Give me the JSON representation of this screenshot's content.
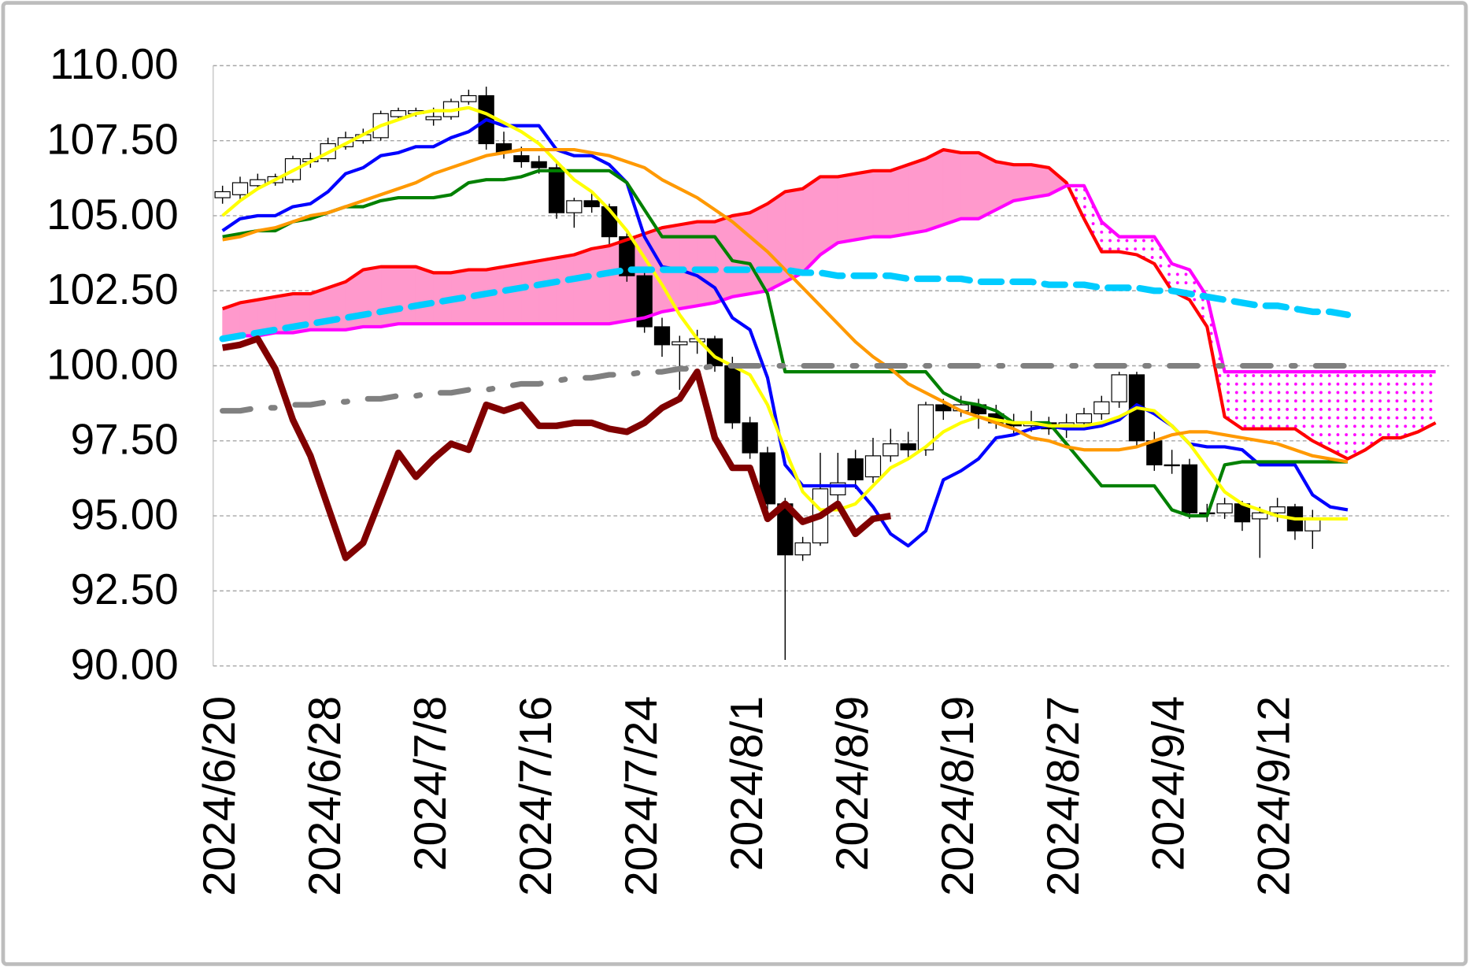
{
  "chart_data": {
    "type": "candlestick",
    "categories": [
      "2024/6/20",
      null,
      null,
      null,
      null,
      null,
      "2024/6/28",
      null,
      null,
      null,
      null,
      null,
      "2024/7/8",
      null,
      null,
      null,
      null,
      null,
      "2024/7/16",
      null,
      null,
      null,
      null,
      null,
      "2024/7/24",
      null,
      null,
      null,
      null,
      null,
      "2024/8/1",
      null,
      null,
      null,
      null,
      null,
      "2024/8/9",
      null,
      null,
      null,
      null,
      null,
      "2024/8/19",
      null,
      null,
      null,
      null,
      null,
      "2024/8/27",
      null,
      null,
      null,
      null,
      null,
      "2024/9/4",
      null,
      null,
      null,
      null,
      null,
      "2024/9/12",
      null,
      null,
      null,
      null,
      null,
      null,
      null,
      null,
      null
    ],
    "candles": {
      "up_color": "#ffffff",
      "down_color": "#000000",
      "open": [
        105.6,
        105.7,
        106.0,
        106.1,
        106.2,
        106.8,
        106.9,
        107.3,
        107.5,
        107.6,
        108.3,
        108.4,
        108.2,
        108.3,
        108.8,
        109.0,
        107.4,
        107.0,
        106.8,
        106.6,
        105.1,
        105.5,
        105.3,
        104.3,
        103.0,
        101.3,
        100.7,
        100.8,
        100.9,
        100.0,
        98.1,
        97.1,
        95.4,
        93.7,
        94.1,
        95.7,
        96.9,
        96.3,
        97.0,
        97.4,
        97.2,
        98.7,
        98.5,
        98.7,
        98.4,
        98.1,
        98.0,
        98.1,
        97.9,
        98.1,
        98.4,
        98.8,
        99.7,
        97.5,
        96.7,
        96.7,
        95.1,
        95.1,
        95.4,
        94.9,
        95.1,
        95.3,
        94.5,
        null,
        null,
        null,
        null,
        null,
        null,
        null
      ],
      "high": [
        106.0,
        106.3,
        106.4,
        106.4,
        107.0,
        107.1,
        107.6,
        107.8,
        107.9,
        108.5,
        108.6,
        108.6,
        108.6,
        108.9,
        109.2,
        109.3,
        107.8,
        107.3,
        107.0,
        106.8,
        105.6,
        105.8,
        105.4,
        104.5,
        103.2,
        101.6,
        101.0,
        101.2,
        101.0,
        100.3,
        98.3,
        97.3,
        95.6,
        94.3,
        97.1,
        97.1,
        97.2,
        97.6,
        97.9,
        97.8,
        98.8,
        98.9,
        99.0,
        98.9,
        98.7,
        98.4,
        98.5,
        98.3,
        98.4,
        98.6,
        99.0,
        99.8,
        99.8,
        97.8,
        97.2,
        96.9,
        95.4,
        95.6,
        95.5,
        95.3,
        95.6,
        95.4,
        95.2,
        null,
        null,
        null,
        null,
        null,
        null,
        null
      ],
      "low": [
        105.4,
        105.5,
        105.9,
        106.0,
        106.1,
        106.6,
        106.8,
        107.2,
        107.4,
        107.5,
        108.2,
        108.3,
        108.0,
        108.2,
        108.7,
        107.2,
        106.9,
        106.6,
        106.4,
        104.9,
        104.6,
        105.1,
        104.0,
        102.8,
        101.1,
        100.3,
        99.2,
        100.4,
        99.8,
        97.9,
        96.9,
        95.2,
        90.2,
        93.5,
        94.0,
        95.5,
        95.9,
        96.1,
        96.8,
        96.9,
        97.0,
        98.2,
        98.3,
        97.9,
        97.9,
        97.7,
        97.8,
        97.7,
        97.6,
        97.9,
        98.2,
        98.6,
        97.3,
        96.5,
        96.4,
        94.9,
        94.8,
        94.9,
        94.5,
        93.6,
        94.8,
        94.2,
        93.9,
        null,
        null,
        null,
        null,
        null,
        null,
        null
      ],
      "close": [
        105.8,
        106.1,
        106.2,
        106.3,
        106.9,
        106.9,
        107.4,
        107.6,
        107.7,
        108.4,
        108.5,
        108.5,
        108.3,
        108.8,
        109.0,
        107.4,
        107.1,
        106.8,
        106.6,
        105.1,
        105.5,
        105.3,
        104.3,
        103.0,
        101.3,
        100.7,
        100.8,
        100.9,
        100.0,
        98.1,
        97.1,
        95.4,
        93.7,
        94.1,
        95.9,
        96.1,
        96.2,
        97.0,
        97.4,
        97.2,
        98.7,
        98.5,
        98.7,
        98.4,
        98.1,
        98.0,
        98.1,
        97.9,
        98.1,
        98.4,
        98.8,
        99.7,
        97.5,
        96.7,
        96.7,
        95.1,
        95.1,
        95.4,
        94.8,
        95.1,
        95.3,
        94.5,
        94.9,
        null,
        null,
        null,
        null,
        null,
        null,
        null
      ]
    },
    "series": [
      {
        "color": "#ff0000",
        "values": [
          101.9,
          102.1,
          102.2,
          102.3,
          102.4,
          102.4,
          102.6,
          102.8,
          103.2,
          103.3,
          103.3,
          103.3,
          103.1,
          103.1,
          103.2,
          103.2,
          103.3,
          103.4,
          103.5,
          103.6,
          103.7,
          103.9,
          104.0,
          104.2,
          104.4,
          104.6,
          104.7,
          104.8,
          104.8,
          105.0,
          105.1,
          105.4,
          105.8,
          105.9,
          106.3,
          106.3,
          106.4,
          106.5,
          106.5,
          106.7,
          106.9,
          107.2,
          107.1,
          107.1,
          106.8,
          106.7,
          106.7,
          106.6,
          106.1,
          104.9,
          103.8,
          103.8,
          103.7,
          103.4,
          102.5,
          102.2,
          101.3,
          98.3,
          97.9,
          97.9,
          97.9,
          97.9,
          97.5,
          97.2,
          96.9,
          97.2,
          97.6,
          97.6,
          97.8,
          98.1
        ]
      },
      {
        "color": "#ff00ff",
        "values": [
          100.9,
          101.0,
          101.0,
          101.1,
          101.1,
          101.2,
          101.2,
          101.2,
          101.3,
          101.3,
          101.4,
          101.4,
          101.4,
          101.4,
          101.4,
          101.4,
          101.4,
          101.4,
          101.4,
          101.4,
          101.4,
          101.4,
          101.4,
          101.5,
          101.6,
          101.8,
          101.9,
          102.0,
          102.1,
          102.3,
          102.4,
          102.5,
          102.8,
          103.1,
          103.7,
          104.1,
          104.2,
          104.3,
          104.3,
          104.4,
          104.5,
          104.7,
          104.9,
          104.9,
          105.2,
          105.5,
          105.6,
          105.7,
          106.0,
          106.0,
          104.8,
          104.3,
          104.3,
          104.3,
          103.4,
          103.2,
          102.3,
          99.8,
          99.8,
          99.8,
          99.8,
          99.8,
          99.8,
          99.8,
          99.8,
          99.8,
          99.8,
          99.8,
          99.8,
          99.8
        ]
      },
      {
        "color": "#0000ff",
        "values": [
          104.5,
          104.9,
          105.0,
          105.0,
          105.3,
          105.4,
          105.8,
          106.4,
          106.6,
          107.0,
          107.1,
          107.3,
          107.3,
          107.6,
          107.8,
          108.2,
          108.0,
          108.0,
          108.0,
          107.2,
          107.0,
          107.0,
          106.7,
          106.1,
          104.3,
          103.3,
          103.2,
          103.0,
          102.6,
          101.6,
          101.2,
          99.6,
          96.7,
          96.0,
          96.0,
          96.0,
          96.0,
          95.3,
          94.4,
          94.0,
          94.5,
          96.2,
          96.5,
          96.9,
          97.6,
          97.7,
          97.9,
          98.0,
          97.9,
          97.9,
          98.0,
          98.2,
          98.7,
          98.4,
          98.0,
          97.4,
          97.3,
          97.3,
          97.2,
          96.7,
          96.7,
          96.7,
          95.7,
          95.3,
          95.2,
          null,
          null,
          null,
          null,
          null
        ]
      },
      {
        "color": "#008000",
        "values": [
          104.3,
          104.4,
          104.5,
          104.5,
          104.8,
          104.9,
          105.1,
          105.3,
          105.3,
          105.5,
          105.6,
          105.6,
          105.6,
          105.7,
          106.1,
          106.2,
          106.2,
          106.3,
          106.5,
          106.5,
          106.5,
          106.5,
          106.5,
          106.1,
          105.2,
          104.3,
          104.3,
          104.3,
          104.3,
          103.5,
          103.4,
          102.4,
          99.8,
          99.8,
          99.8,
          99.8,
          99.8,
          99.8,
          99.8,
          99.8,
          99.8,
          99.1,
          98.8,
          98.7,
          98.5,
          98.1,
          98.1,
          98.1,
          97.4,
          96.7,
          96.0,
          96.0,
          96.0,
          96.0,
          95.2,
          95.0,
          95.0,
          96.7,
          96.8,
          96.8,
          96.8,
          96.8,
          96.8,
          96.8,
          96.8,
          null,
          null,
          null,
          null,
          null
        ]
      },
      {
        "color": "#ffff00",
        "values": [
          105.0,
          105.5,
          105.9,
          106.2,
          106.5,
          106.8,
          107.1,
          107.4,
          107.7,
          108.0,
          108.2,
          108.4,
          108.5,
          108.5,
          108.6,
          108.4,
          108.1,
          107.8,
          107.4,
          106.8,
          106.2,
          105.8,
          105.2,
          104.5,
          103.6,
          102.7,
          101.7,
          100.9,
          100.3,
          100.0,
          99.7,
          98.7,
          97.2,
          95.8,
          95.2,
          95.2,
          95.4,
          96.0,
          96.6,
          96.9,
          97.3,
          97.8,
          98.1,
          98.3,
          98.2,
          98.1,
          98.1,
          98.0,
          98.0,
          98.0,
          98.1,
          98.3,
          98.6,
          98.5,
          98.0,
          97.4,
          96.6,
          95.8,
          95.4,
          95.2,
          95.0,
          94.9,
          94.9,
          94.9,
          94.9,
          null,
          null,
          null,
          null,
          null
        ]
      },
      {
        "color": "#ff9900",
        "values": [
          104.2,
          104.3,
          104.5,
          104.6,
          104.8,
          105.0,
          105.1,
          105.3,
          105.5,
          105.7,
          105.9,
          106.1,
          106.4,
          106.6,
          106.8,
          107.0,
          107.1,
          107.2,
          107.2,
          107.2,
          107.2,
          107.1,
          107.0,
          106.8,
          106.6,
          106.2,
          105.9,
          105.6,
          105.2,
          104.8,
          104.3,
          103.8,
          103.2,
          102.6,
          102.0,
          101.4,
          100.8,
          100.3,
          99.9,
          99.4,
          99.1,
          98.8,
          98.5,
          98.3,
          98.1,
          97.9,
          97.6,
          97.5,
          97.3,
          97.2,
          97.2,
          97.2,
          97.3,
          97.5,
          97.7,
          97.8,
          97.8,
          97.7,
          97.6,
          97.5,
          97.4,
          97.2,
          97.0,
          96.9,
          96.8,
          null,
          null,
          null,
          null,
          null
        ]
      },
      {
        "color": "#00ccff",
        "dash": "dash",
        "values": [
          100.9,
          101.0,
          101.1,
          101.2,
          101.3,
          101.4,
          101.5,
          101.6,
          101.7,
          101.8,
          101.9,
          102.0,
          102.1,
          102.2,
          102.3,
          102.4,
          102.5,
          102.6,
          102.7,
          102.8,
          102.9,
          103.0,
          103.1,
          103.2,
          103.2,
          103.2,
          103.2,
          103.2,
          103.2,
          103.2,
          103.2,
          103.2,
          103.2,
          103.1,
          103.1,
          103.0,
          103.0,
          103.0,
          103.0,
          102.9,
          102.9,
          102.9,
          102.9,
          102.8,
          102.8,
          102.8,
          102.8,
          102.7,
          102.7,
          102.7,
          102.6,
          102.6,
          102.6,
          102.5,
          102.5,
          102.4,
          102.3,
          102.2,
          102.1,
          102.0,
          102.0,
          101.9,
          101.8,
          101.8,
          101.7,
          null,
          null,
          null,
          null,
          null
        ]
      },
      {
        "color": "#808080",
        "dash": "dashdot",
        "values": [
          98.5,
          98.5,
          98.6,
          98.6,
          98.7,
          98.7,
          98.8,
          98.8,
          98.9,
          98.9,
          99.0,
          99.0,
          99.1,
          99.1,
          99.2,
          99.2,
          99.3,
          99.4,
          99.4,
          99.5,
          99.6,
          99.6,
          99.7,
          99.7,
          99.8,
          99.8,
          99.9,
          99.9,
          100.0,
          100.0,
          100.0,
          100.0,
          100.0,
          100.0,
          100.0,
          100.0,
          100.0,
          100.0,
          100.0,
          100.0,
          100.0,
          100.0,
          100.0,
          100.0,
          100.0,
          100.0,
          100.0,
          100.0,
          100.0,
          100.0,
          100.0,
          100.0,
          100.0,
          100.0,
          100.0,
          100.0,
          100.0,
          100.0,
          100.0,
          100.0,
          100.0,
          100.0,
          100.0,
          100.0,
          100.0,
          null,
          null,
          null,
          null,
          null
        ]
      },
      {
        "color": "#800000",
        "values": [
          100.6,
          100.7,
          100.9,
          99.9,
          98.2,
          97.0,
          95.3,
          93.6,
          94.1,
          95.6,
          97.1,
          96.3,
          96.9,
          97.4,
          97.2,
          98.7,
          98.5,
          98.7,
          98.0,
          98.0,
          98.1,
          98.1,
          97.9,
          97.8,
          98.1,
          98.6,
          98.9,
          99.8,
          97.6,
          96.6,
          96.6,
          94.9,
          95.4,
          94.8,
          95.0,
          95.4,
          94.4,
          94.9,
          95.0,
          null,
          null,
          null,
          null,
          null,
          null,
          null,
          null,
          null,
          null,
          null,
          null,
          null,
          null,
          null,
          null,
          null,
          null,
          null,
          null,
          null,
          null,
          null,
          null,
          null,
          null,
          null,
          null,
          null,
          null,
          null
        ]
      }
    ],
    "cloud": {
      "between": [
        0,
        1
      ],
      "color": "#ff99cc",
      "pattern_color": "#ff00ff"
    },
    "ylim": [
      90,
      110
    ],
    "yticks": [
      {
        "value": 90,
        "label": "90.00"
      },
      {
        "value": 92.5,
        "label": "92.50"
      },
      {
        "value": 95,
        "label": "95.00"
      },
      {
        "value": 97.5,
        "label": "97.50"
      },
      {
        "value": 100,
        "label": "100.00"
      },
      {
        "value": 102.5,
        "label": "102.50"
      },
      {
        "value": 105,
        "label": "105.00"
      },
      {
        "value": 107.5,
        "label": "107.50"
      },
      {
        "value": 110,
        "label": "110.00"
      }
    ],
    "grid": true
  }
}
